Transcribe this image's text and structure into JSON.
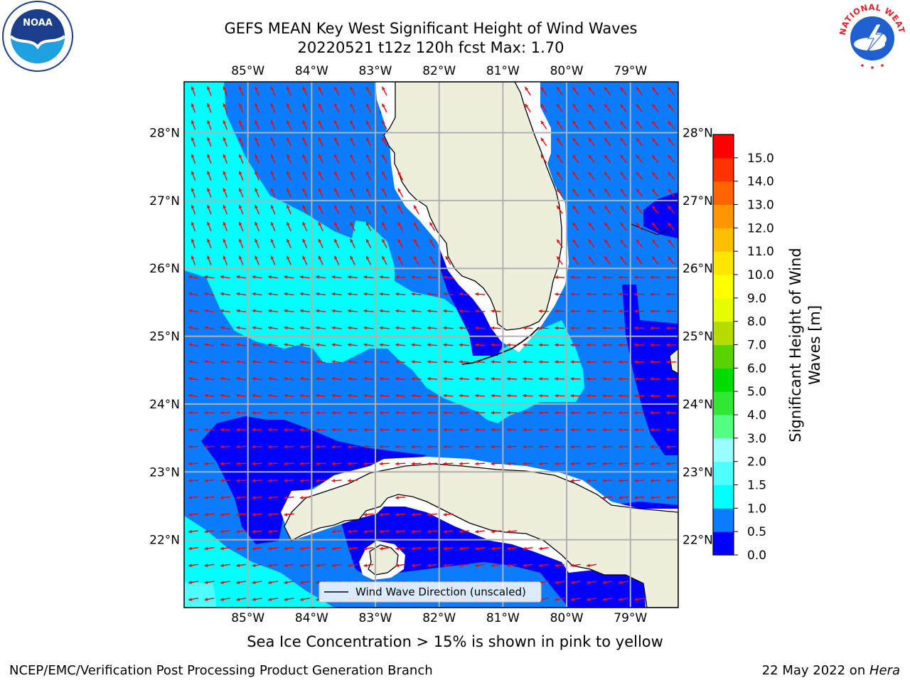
{
  "title": {
    "line1": "GEFS MEAN Key West Significant Height of Wind Waves",
    "line2": "20220521 t12z 120h fcst   Max: 1.70"
  },
  "logos": {
    "left": {
      "icon": "noaa-logo",
      "text": "NOAA",
      "ring_text": "NATIONAL OCEANIC AND ATMOSPHERIC ADMINISTRATION  U.S. DEPARTMENT OF COMMERCE"
    },
    "right": {
      "icon": "nws-logo",
      "ring_text": "NATIONAL WEATHER SERVICE"
    }
  },
  "map": {
    "lon_ticks": [
      "85°W",
      "84°W",
      "83°W",
      "82°W",
      "81°W",
      "80°W",
      "79°W"
    ],
    "lon_values": [
      -85,
      -84,
      -83,
      -82,
      -81,
      -80,
      -79
    ],
    "lat_ticks": [
      "28°N",
      "27°N",
      "26°N",
      "25°N",
      "24°N",
      "23°N",
      "22°N"
    ],
    "lat_values": [
      28,
      27,
      26,
      25,
      24,
      23,
      22
    ],
    "extent": {
      "lon_min": -86,
      "lon_max": -78.25,
      "lat_min": 21.0,
      "lat_max": 28.75
    },
    "legend": "Wind Wave Direction (unscaled)",
    "arrow_color": "#ff0000",
    "land_color": "#eeeedc"
  },
  "colorbar": {
    "label": "Significant Height of Wind Waves [m]",
    "label_line1": "Significant Height of Wind",
    "label_line2": "Waves [m]",
    "ticks": [
      "15.0",
      "14.0",
      "13.0",
      "12.0",
      "11.0",
      "10.0",
      "9.0",
      "8.0",
      "7.0",
      "6.0",
      "5.0",
      "4.0",
      "3.0",
      "2.0",
      "1.5",
      "1.0",
      "0.5",
      "0.0"
    ],
    "colors": [
      "#0000ff",
      "#0a7cff",
      "#00ffff",
      "#4dffff",
      "#99ffff",
      "#55ff80",
      "#32e632",
      "#00dc00",
      "#5ad200",
      "#b4dc00",
      "#e6ff00",
      "#ffff00",
      "#ffe600",
      "#ffbe00",
      "#ff9600",
      "#ff6400",
      "#ff3200",
      "#ff0000"
    ]
  },
  "notes": {
    "ice": "Sea Ice Concentration > 15% is shown in pink to yellow",
    "footer_left": "NCEP/EMC/Verification Post Processing Product Generation Branch",
    "footer_date": "22 May 2022 on ",
    "footer_machine": "Hera"
  }
}
